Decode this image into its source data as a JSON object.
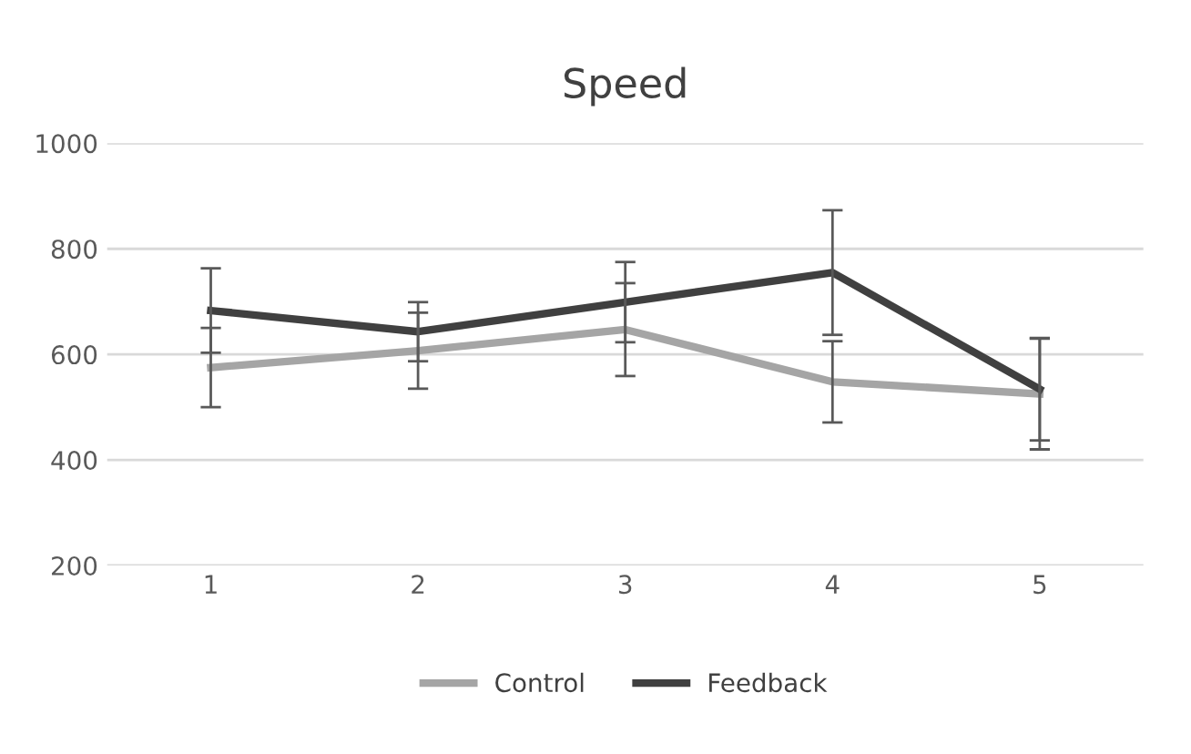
{
  "chart_data": {
    "type": "line",
    "title": "Speed",
    "categories": [
      "1",
      "2",
      "3",
      "4",
      "5"
    ],
    "series": [
      {
        "name": "Control",
        "color": "#a5a5a5",
        "values": [
          575,
          607,
          647,
          548,
          525
        ],
        "errors": [
          75,
          72,
          88,
          77,
          105
        ]
      },
      {
        "name": "Feedback",
        "color": "#404040",
        "values": [
          683,
          643,
          699,
          755,
          534
        ],
        "errors": [
          80,
          56,
          76,
          118,
          97
        ]
      }
    ],
    "ylim": [
      200,
      1000
    ],
    "yticks": [
      200,
      400,
      600,
      800,
      1000
    ],
    "grid": "y",
    "legend": "bottom",
    "marker": "none",
    "line_style": "solid"
  }
}
